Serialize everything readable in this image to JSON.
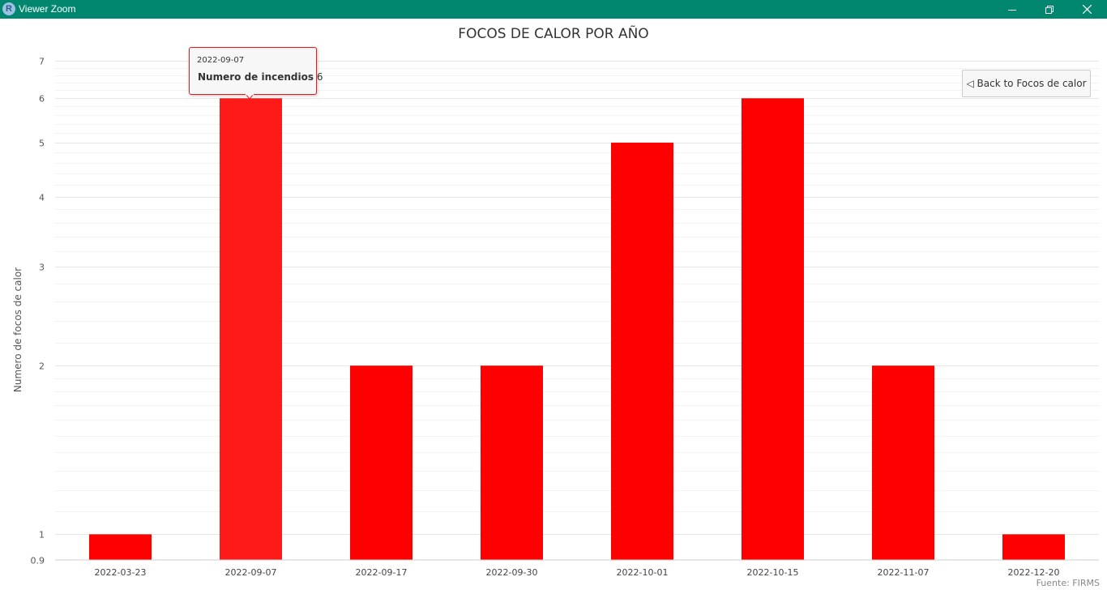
{
  "window": {
    "title": "Viewer Zoom",
    "app_icon": "R"
  },
  "back_button": {
    "label": "◁ Back to Focos de calor"
  },
  "tooltip": {
    "date": "2022-09-07",
    "label": "Numero de incendios",
    "value": "6"
  },
  "source": "Fuente: FIRMS",
  "colors": {
    "bar": "#ff0000",
    "bar_hover": "#ff1a1a",
    "titlebar": "#01876f",
    "tooltip_border": "#e31a1c"
  },
  "chart_data": {
    "type": "bar",
    "title": "FOCOS DE CALOR POR AÑO",
    "xlabel": "",
    "ylabel": "Numero de focos de calor",
    "y_scale": "log",
    "ylim": [
      0.9,
      7
    ],
    "y_ticks": [
      0.9,
      1,
      2,
      3,
      4,
      5,
      6,
      7
    ],
    "y_tick_labels": [
      "0.9",
      "1",
      "2",
      "3",
      "4",
      "5",
      "6",
      "7"
    ],
    "categories": [
      "2022-03-23",
      "2022-09-07",
      "2022-09-17",
      "2022-09-30",
      "2022-10-01",
      "2022-10-15",
      "2022-11-07",
      "2022-12-20"
    ],
    "values": [
      1,
      6,
      2,
      2,
      5,
      6,
      2,
      1
    ],
    "highlighted_category": "2022-09-07",
    "grid": true,
    "legend": "none"
  }
}
